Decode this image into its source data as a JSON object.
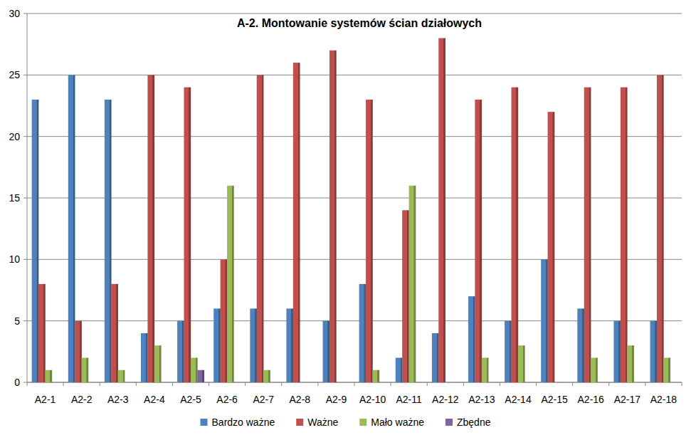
{
  "chart_data": {
    "type": "bar",
    "title": "A-2. Montowanie systemów ścian działowych",
    "categories": [
      "A2-1",
      "A2-2",
      "A2-3",
      "A2-4",
      "A2-5",
      "A2-6",
      "A2-7",
      "A2-8",
      "A2-9",
      "A2-10",
      "A2-11",
      "A2-12",
      "A2-13",
      "A2-14",
      "A2-15",
      "A2-16",
      "A2-17",
      "A2-18"
    ],
    "series": [
      {
        "name": "Bardzo ważne",
        "color": "#4f81bd",
        "values": [
          23,
          25,
          23,
          4,
          5,
          6,
          6,
          6,
          5,
          8,
          2,
          4,
          7,
          5,
          10,
          6,
          5,
          5
        ]
      },
      {
        "name": "Ważne",
        "color": "#c0504d",
        "values": [
          8,
          5,
          8,
          25,
          24,
          10,
          25,
          26,
          27,
          23,
          14,
          28,
          23,
          24,
          22,
          24,
          24,
          25
        ]
      },
      {
        "name": "Mało ważne",
        "color": "#9bbb59",
        "values": [
          1,
          2,
          1,
          3,
          2,
          16,
          1,
          0,
          0,
          1,
          16,
          0,
          2,
          3,
          0,
          2,
          3,
          2
        ]
      },
      {
        "name": "Zbędne",
        "color": "#8064a2",
        "values": [
          0,
          0,
          0,
          0,
          1,
          0,
          0,
          0,
          0,
          0,
          0,
          0,
          0,
          0,
          0,
          0,
          0,
          0
        ]
      }
    ],
    "ylim": [
      0,
      30
    ],
    "yticks": [
      0,
      5,
      10,
      15,
      20,
      25,
      30
    ],
    "grid": true,
    "legend": "bottom"
  }
}
